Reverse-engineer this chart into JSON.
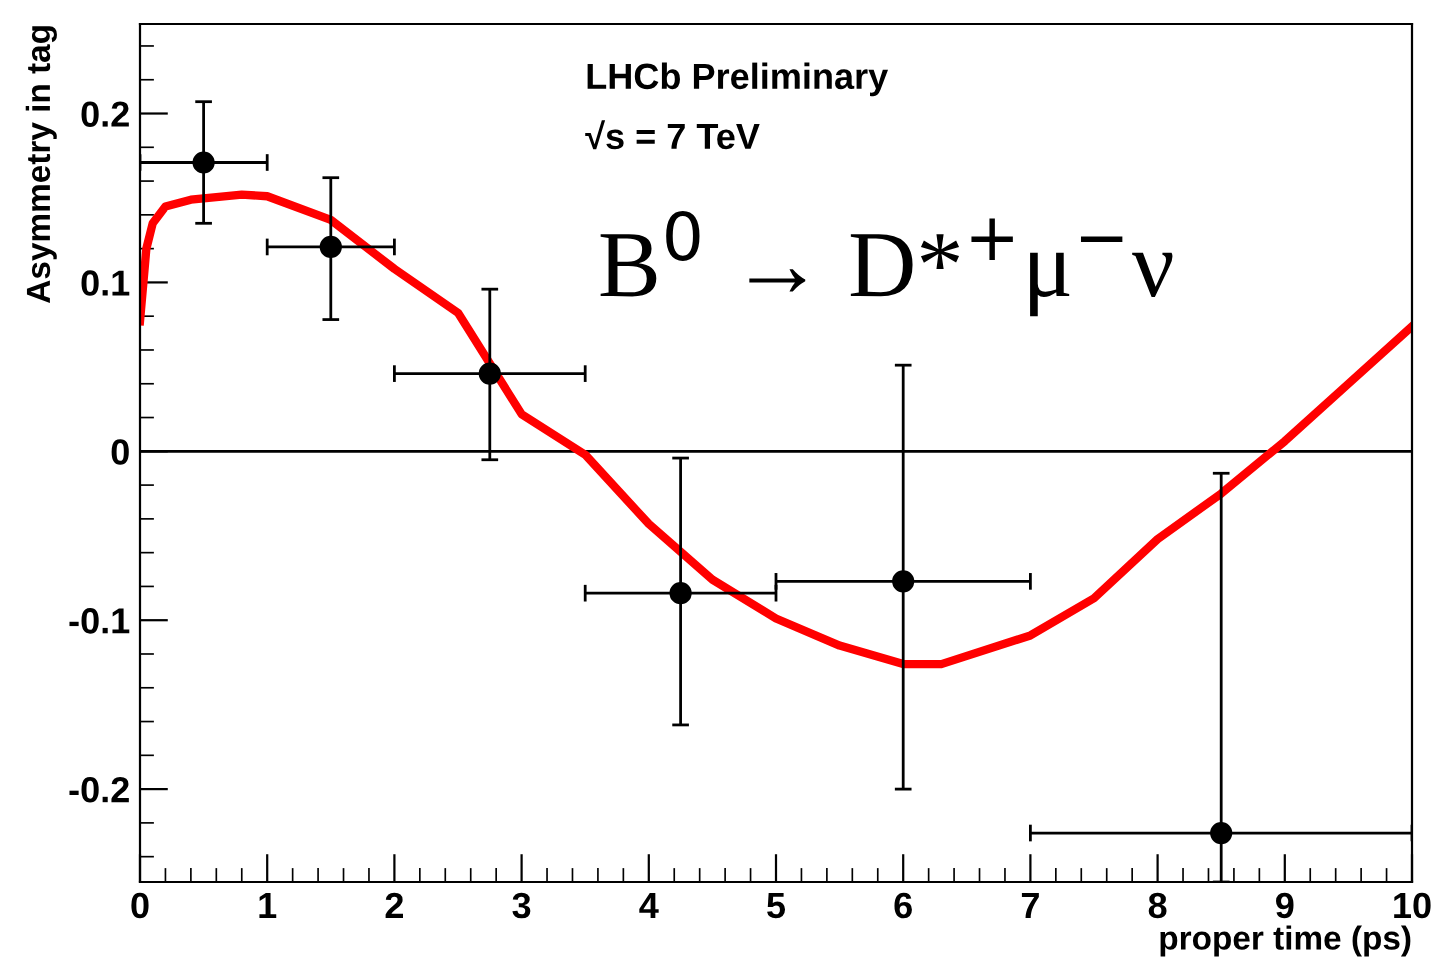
{
  "chart_data": {
    "type": "scatter",
    "xlabel": "proper time (ps)",
    "ylabel": "Asymmetry in tag",
    "xlim": [
      0,
      10
    ],
    "ylim": [
      -0.255,
      0.253
    ],
    "xticks": [
      0,
      1,
      2,
      3,
      4,
      5,
      6,
      7,
      8,
      9,
      10
    ],
    "yticks": [
      -0.2,
      -0.1,
      0,
      0.1,
      0.2
    ],
    "grid": false,
    "legend": false,
    "annotations": [
      "LHCb Preliminary",
      "√s = 7 TeV",
      "B$^{0}$ → D*$^{+}$μ$^{−}$ν"
    ],
    "ref_lines": [
      {
        "axis": "y",
        "value": 0,
        "color": "#000000"
      }
    ],
    "series": [
      {
        "marker": "circle",
        "color": "#000000",
        "x": [
          0.5,
          1.5,
          2.75,
          4.25,
          6,
          8.5
        ],
        "values": [
          0.171,
          0.121,
          0.046,
          -0.084,
          -0.077,
          -0.226
        ],
        "errors": [
          [
            0.135,
            0.207
          ],
          [
            0.078,
            0.162
          ],
          [
            -0.005,
            0.096
          ],
          [
            -0.162,
            -0.004
          ],
          [
            -0.2,
            0.051
          ],
          [
            -0.255,
            -0.013
          ]
        ],
        "xerrors": [
          [
            0,
            1
          ],
          [
            1,
            2
          ],
          [
            2,
            3.5
          ],
          [
            3.5,
            5
          ],
          [
            5,
            7
          ],
          [
            7,
            10
          ]
        ]
      },
      {
        "type": "line",
        "color": "#ff0000",
        "line_style": "solid",
        "x": [
          0,
          0.05,
          0.1,
          0.2,
          0.4,
          0.8,
          1.0,
          1.5,
          2.0,
          2.5,
          3.0,
          3.5,
          4.0,
          4.5,
          5.0,
          5.5,
          6.0,
          6.3,
          7.0,
          7.5,
          8.0,
          8.5,
          9.0,
          9.5,
          10
        ],
        "values": [
          0.077,
          0.12,
          0.135,
          0.145,
          0.149,
          0.152,
          0.151,
          0.137,
          0.108,
          0.082,
          0.022,
          -0.002,
          -0.043,
          -0.076,
          -0.099,
          -0.115,
          -0.126,
          -0.126,
          -0.109,
          -0.087,
          -0.052,
          -0.025,
          0.006,
          0.04,
          0.074
        ]
      }
    ]
  }
}
